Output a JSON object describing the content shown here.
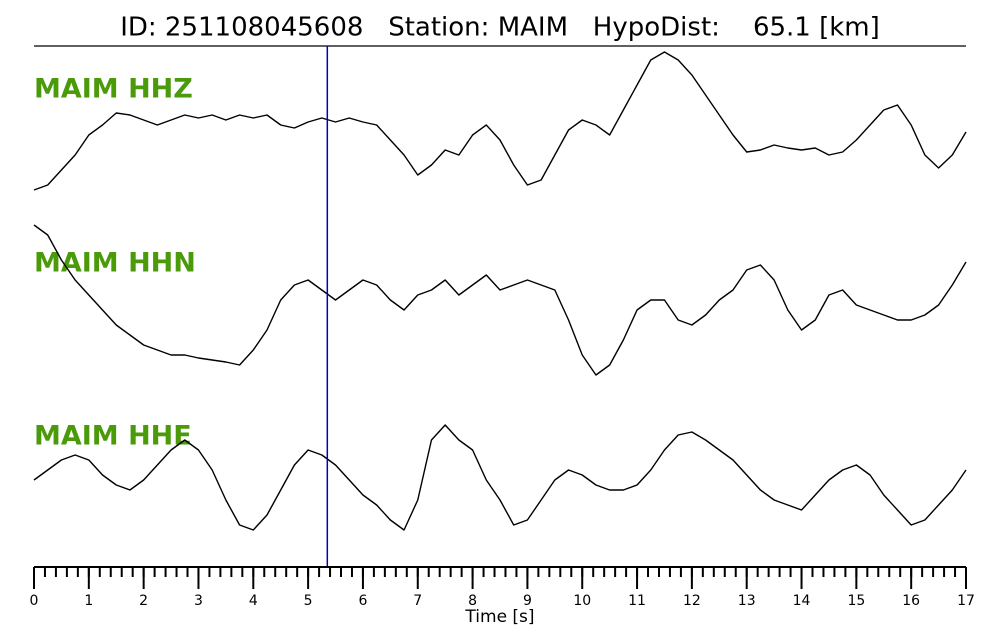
{
  "chart_data": {
    "type": "line",
    "title": "ID: 251108045608   Station: MAIM   HypoDist:    65.1 [km]",
    "xlabel": "Time [s]",
    "xlim": [
      0,
      17
    ],
    "xticks": [
      0,
      1,
      2,
      3,
      4,
      5,
      6,
      7,
      8,
      9,
      10,
      11,
      12,
      13,
      14,
      15,
      16,
      17
    ],
    "xminor_step": 0.2,
    "ylim": [
      -90,
      90
    ],
    "pick_time": 5.35,
    "pick_color": "#0000cc",
    "label_color": "#4a9a0a",
    "x": [
      0,
      0.25,
      0.5,
      0.75,
      1,
      1.25,
      1.5,
      1.75,
      2,
      2.25,
      2.5,
      2.75,
      3,
      3.25,
      3.5,
      3.75,
      4,
      4.25,
      4.5,
      4.75,
      5,
      5.25,
      5.5,
      5.75,
      6,
      6.25,
      6.5,
      6.75,
      7,
      7.25,
      7.5,
      7.75,
      8,
      8.25,
      8.5,
      8.75,
      9,
      9.25,
      9.5,
      9.75,
      10,
      10.25,
      10.5,
      10.75,
      11,
      11.25,
      11.5,
      11.75,
      12,
      12.25,
      12.5,
      12.75,
      13,
      13.25,
      13.5,
      13.75,
      14,
      14.25,
      14.5,
      14.75,
      15,
      15.25,
      15.5,
      15.75,
      16,
      16.25,
      16.5,
      16.75,
      17
    ],
    "series": [
      {
        "name": "MAIM HHZ",
        "color": "#000000",
        "values": [
          -60,
          -55,
          -40,
          -25,
          -5,
          5,
          17,
          15,
          10,
          5,
          10,
          15,
          12,
          15,
          10,
          15,
          12,
          15,
          5,
          2,
          8,
          12,
          8,
          12,
          8,
          5,
          -10,
          -25,
          -45,
          -35,
          -20,
          -25,
          -5,
          5,
          -10,
          -35,
          -55,
          -50,
          -25,
          0,
          10,
          5,
          -5,
          20,
          45,
          70,
          78,
          70,
          55,
          35,
          15,
          -5,
          -22,
          -20,
          -15,
          -18,
          -20,
          -18,
          -25,
          -22,
          -10,
          5,
          20,
          25,
          5,
          -25,
          -38,
          -25,
          -2
        ]
      },
      {
        "name": "MAIM HHN",
        "color": "#000000",
        "values": [
          75,
          65,
          40,
          20,
          5,
          -10,
          -25,
          -35,
          -45,
          -50,
          -55,
          -55,
          -58,
          -60,
          -62,
          -65,
          -50,
          -30,
          0,
          15,
          20,
          10,
          0,
          10,
          20,
          15,
          0,
          -10,
          5,
          10,
          20,
          5,
          15,
          25,
          10,
          15,
          20,
          15,
          10,
          -20,
          -55,
          -75,
          -65,
          -40,
          -10,
          0,
          0,
          -20,
          -25,
          -15,
          0,
          10,
          30,
          35,
          20,
          -10,
          -30,
          -20,
          5,
          10,
          -5,
          -10,
          -15,
          -20,
          -20,
          -15,
          -5,
          15,
          38
        ]
      },
      {
        "name": "MAIM HHE",
        "color": "#000000",
        "values": [
          0,
          10,
          20,
          25,
          20,
          5,
          -5,
          -10,
          0,
          15,
          30,
          40,
          30,
          10,
          -20,
          -45,
          -50,
          -35,
          -10,
          15,
          30,
          25,
          15,
          0,
          -15,
          -25,
          -40,
          -50,
          -20,
          40,
          55,
          40,
          30,
          0,
          -20,
          -45,
          -40,
          -20,
          0,
          10,
          5,
          -5,
          -10,
          -10,
          -5,
          10,
          30,
          45,
          48,
          40,
          30,
          20,
          5,
          -10,
          -20,
          -25,
          -30,
          -15,
          0,
          10,
          15,
          5,
          -15,
          -30,
          -45,
          -40,
          -25,
          -10,
          10
        ]
      }
    ]
  }
}
